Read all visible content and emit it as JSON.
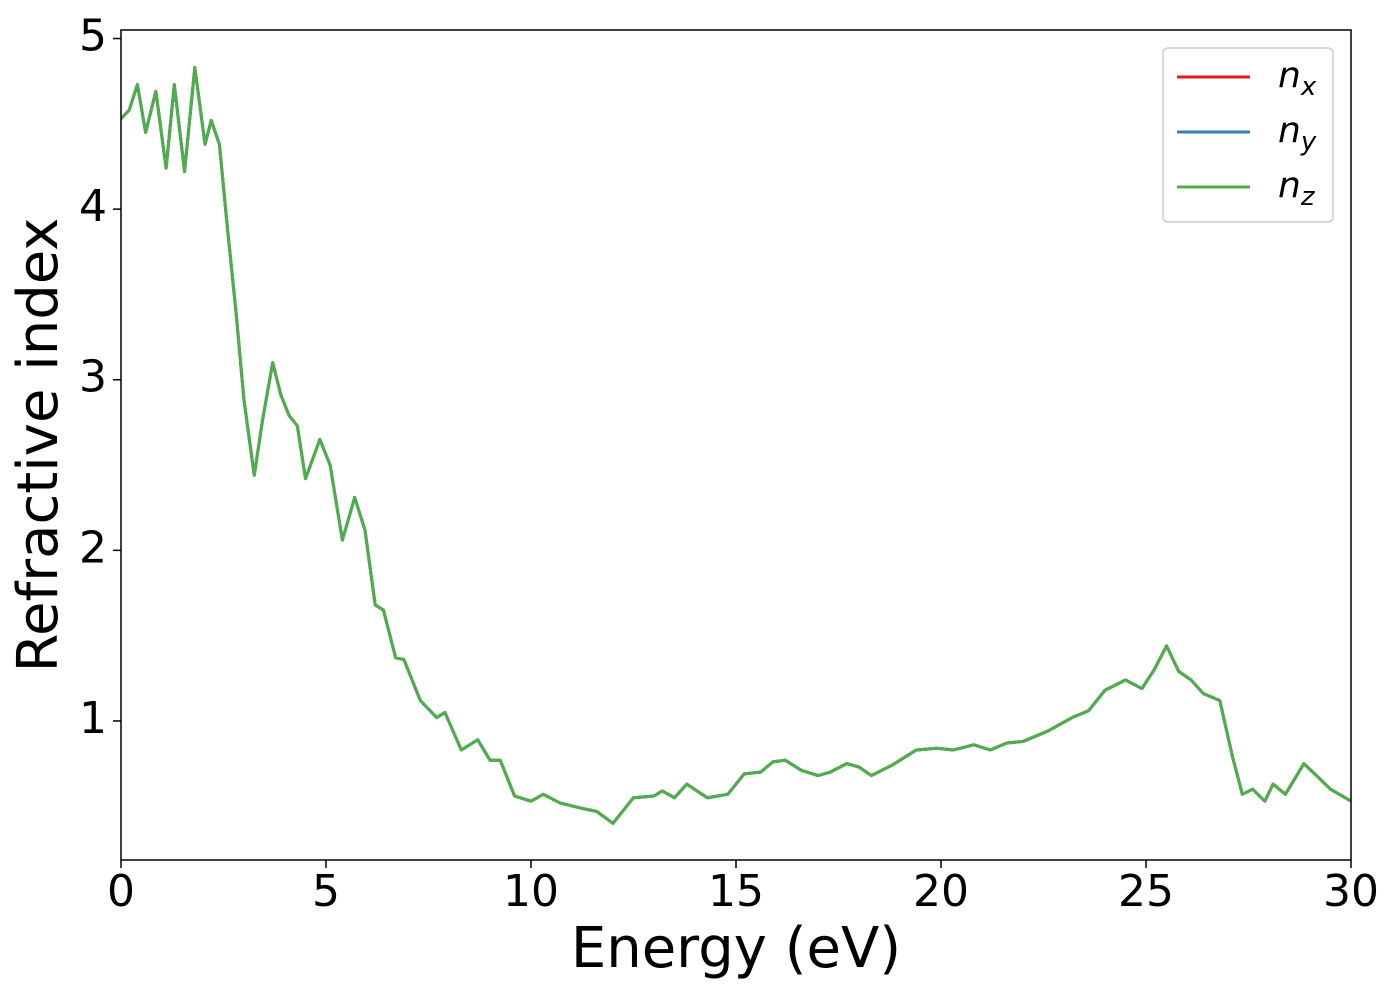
{
  "chart_data": {
    "type": "line",
    "x_label": "Energy (eV)",
    "y_label": "Refractive index",
    "x": [
      0,
      0.2,
      0.4,
      0.6,
      0.85,
      1.1,
      1.3,
      1.55,
      1.8,
      2.05,
      2.2,
      2.4,
      2.6,
      2.8,
      3.0,
      3.25,
      3.45,
      3.7,
      3.9,
      4.1,
      4.3,
      4.5,
      4.85,
      5.1,
      5.4,
      5.7,
      5.95,
      6.2,
      6.4,
      6.7,
      6.9,
      7.3,
      7.7,
      7.9,
      8.3,
      8.7,
      9.0,
      9.25,
      9.6,
      10,
      10.3,
      10.7,
      11.2,
      11.6,
      12,
      12.5,
      13,
      13.2,
      13.5,
      13.8,
      14.3,
      14.8,
      15.2,
      15.6,
      15.9,
      16.2,
      16.6,
      17,
      17.3,
      17.7,
      18,
      18.3,
      18.8,
      19.4,
      19.9,
      20.3,
      20.8,
      21.2,
      21.6,
      22,
      22.6,
      23.2,
      23.6,
      24,
      24.5,
      24.9,
      25.2,
      25.5,
      25.8,
      26.1,
      26.4,
      26.8,
      27.1,
      27.35,
      27.6,
      27.9,
      28.1,
      28.4,
      28.85,
      29.2,
      29.5,
      30
    ],
    "series": [
      {
        "name": "n_x",
        "color": "#e41a1c",
        "values": [
          4.53,
          4.58,
          4.73,
          4.45,
          4.69,
          4.24,
          4.73,
          4.22,
          4.83,
          4.38,
          4.52,
          4.38,
          3.88,
          3.41,
          2.88,
          2.44,
          2.76,
          3.1,
          2.91,
          2.79,
          2.73,
          2.42,
          2.65,
          2.5,
          2.06,
          2.31,
          2.12,
          1.68,
          1.65,
          1.37,
          1.36,
          1.12,
          1.02,
          1.05,
          0.83,
          0.89,
          0.77,
          0.77,
          0.56,
          0.53,
          0.57,
          0.52,
          0.49,
          0.47,
          0.4,
          0.55,
          0.56,
          0.59,
          0.55,
          0.63,
          0.55,
          0.57,
          0.69,
          0.7,
          0.76,
          0.77,
          0.71,
          0.68,
          0.7,
          0.75,
          0.73,
          0.68,
          0.74,
          0.83,
          0.84,
          0.83,
          0.86,
          0.83,
          0.87,
          0.88,
          0.94,
          1.02,
          1.06,
          1.18,
          1.24,
          1.19,
          1.3,
          1.44,
          1.29,
          1.24,
          1.16,
          1.12,
          0.8,
          0.57,
          0.6,
          0.53,
          0.63,
          0.57,
          0.75,
          0.67,
          0.6,
          0.53
        ]
      },
      {
        "name": "n_y",
        "color": "#377eb8",
        "values": [
          4.53,
          4.58,
          4.73,
          4.45,
          4.69,
          4.24,
          4.73,
          4.22,
          4.83,
          4.38,
          4.52,
          4.38,
          3.88,
          3.41,
          2.88,
          2.44,
          2.76,
          3.1,
          2.91,
          2.79,
          2.73,
          2.42,
          2.65,
          2.5,
          2.06,
          2.31,
          2.12,
          1.68,
          1.65,
          1.37,
          1.36,
          1.12,
          1.02,
          1.05,
          0.83,
          0.89,
          0.77,
          0.77,
          0.56,
          0.53,
          0.57,
          0.52,
          0.49,
          0.47,
          0.4,
          0.55,
          0.56,
          0.59,
          0.55,
          0.63,
          0.55,
          0.57,
          0.69,
          0.7,
          0.76,
          0.77,
          0.71,
          0.68,
          0.7,
          0.75,
          0.73,
          0.68,
          0.74,
          0.83,
          0.84,
          0.83,
          0.86,
          0.83,
          0.87,
          0.88,
          0.94,
          1.02,
          1.06,
          1.18,
          1.24,
          1.19,
          1.3,
          1.44,
          1.29,
          1.24,
          1.16,
          1.12,
          0.8,
          0.57,
          0.6,
          0.53,
          0.63,
          0.57,
          0.75,
          0.67,
          0.6,
          0.53
        ]
      },
      {
        "name": "n_z",
        "color": "#4daf4a",
        "values": [
          4.53,
          4.58,
          4.73,
          4.45,
          4.69,
          4.24,
          4.73,
          4.22,
          4.83,
          4.38,
          4.52,
          4.38,
          3.88,
          3.41,
          2.88,
          2.44,
          2.76,
          3.1,
          2.91,
          2.79,
          2.73,
          2.42,
          2.65,
          2.5,
          2.06,
          2.31,
          2.12,
          1.68,
          1.65,
          1.37,
          1.36,
          1.12,
          1.02,
          1.05,
          0.83,
          0.89,
          0.77,
          0.77,
          0.56,
          0.53,
          0.57,
          0.52,
          0.49,
          0.47,
          0.4,
          0.55,
          0.56,
          0.59,
          0.55,
          0.63,
          0.55,
          0.57,
          0.69,
          0.7,
          0.76,
          0.77,
          0.71,
          0.68,
          0.7,
          0.75,
          0.73,
          0.68,
          0.74,
          0.83,
          0.84,
          0.83,
          0.86,
          0.83,
          0.87,
          0.88,
          0.94,
          1.02,
          1.06,
          1.18,
          1.24,
          1.19,
          1.3,
          1.44,
          1.29,
          1.24,
          1.16,
          1.12,
          0.8,
          0.57,
          0.6,
          0.53,
          0.63,
          0.57,
          0.75,
          0.67,
          0.6,
          0.53
        ]
      }
    ],
    "xlim": [
      0,
      30
    ],
    "xticks": [
      0,
      5,
      10,
      15,
      20,
      25,
      30
    ],
    "ylim": [
      0.185,
      5.05
    ],
    "yticks": [
      1,
      2,
      3,
      4,
      5
    ],
    "grid": false,
    "legend": "upper right"
  }
}
